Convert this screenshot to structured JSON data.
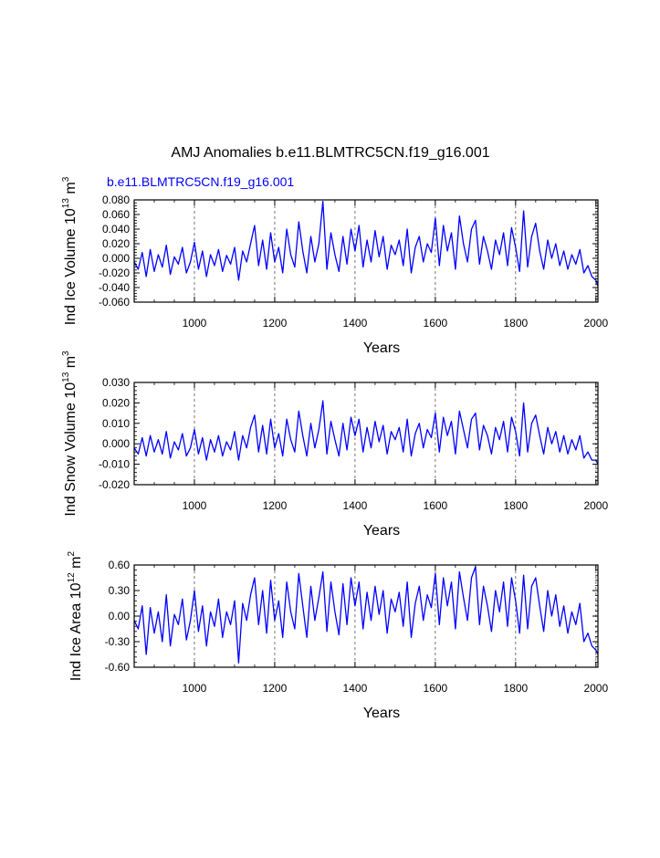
{
  "figure": {
    "title": "AMJ Anomalies b.e11.BLMTRC5CN.f19_g16.001",
    "case_label": "b.e11.BLMTRC5CN.f19_g16.001",
    "case_label_color": "#0000ff",
    "line_color": "#0000ff"
  },
  "chart_data": [
    {
      "type": "line",
      "name": "ice-volume",
      "ylabel": "Ind Ice Volume 10^13 m^3",
      "ylabel_parts": [
        "Ind Ice Volume 10",
        "13",
        " m",
        "3"
      ],
      "xlabel": "Years",
      "xlim": [
        850,
        2005
      ],
      "ylim": [
        -0.06,
        0.08
      ],
      "x_ticks": [
        1000,
        1200,
        1400,
        1600,
        1800,
        2000
      ],
      "x_tick_labels": [
        "1000",
        "1200",
        "1400",
        "1600",
        "1800",
        "2000"
      ],
      "y_ticks": [
        0.08,
        0.06,
        0.04,
        0.02,
        0.0,
        -0.02,
        -0.04,
        -0.06
      ],
      "y_tick_labels": [
        "0.080",
        "0.060",
        "0.040",
        "0.020",
        "0.000",
        "-0.020",
        "-0.040",
        "-0.060"
      ],
      "grid_x": [
        1000,
        1200,
        1400,
        1600,
        1800,
        2000
      ],
      "series": [
        {
          "name": "b.e11.BLMTRC5CN.f19_g16.001",
          "x": [
            850,
            860,
            870,
            880,
            890,
            900,
            910,
            920,
            930,
            940,
            950,
            960,
            970,
            980,
            990,
            1000,
            1010,
            1020,
            1030,
            1040,
            1050,
            1060,
            1070,
            1080,
            1090,
            1100,
            1110,
            1120,
            1130,
            1140,
            1150,
            1160,
            1170,
            1180,
            1190,
            1200,
            1210,
            1220,
            1230,
            1240,
            1250,
            1260,
            1270,
            1280,
            1290,
            1300,
            1310,
            1320,
            1330,
            1340,
            1350,
            1360,
            1370,
            1380,
            1390,
            1400,
            1410,
            1420,
            1430,
            1440,
            1450,
            1460,
            1470,
            1480,
            1490,
            1500,
            1510,
            1520,
            1530,
            1540,
            1550,
            1560,
            1570,
            1580,
            1590,
            1600,
            1610,
            1620,
            1630,
            1640,
            1650,
            1660,
            1670,
            1680,
            1690,
            1700,
            1710,
            1720,
            1730,
            1740,
            1750,
            1760,
            1770,
            1780,
            1790,
            1800,
            1810,
            1820,
            1830,
            1840,
            1850,
            1860,
            1870,
            1880,
            1890,
            1900,
            1910,
            1920,
            1930,
            1940,
            1950,
            1960,
            1970,
            1980,
            1990,
            2000,
            2005
          ],
          "values": [
            -0.005,
            -0.015,
            0.008,
            -0.025,
            0.012,
            -0.018,
            0.005,
            -0.012,
            0.018,
            -0.022,
            0.002,
            -0.008,
            0.015,
            -0.02,
            -0.005,
            0.022,
            -0.015,
            0.01,
            -0.025,
            0.005,
            -0.01,
            0.012,
            -0.018,
            0.004,
            -0.008,
            0.015,
            -0.03,
            0.01,
            -0.005,
            0.02,
            0.045,
            -0.01,
            0.025,
            -0.015,
            0.035,
            -0.005,
            0.015,
            -0.02,
            0.04,
            0.005,
            -0.012,
            0.05,
            0.01,
            -0.02,
            0.03,
            -0.005,
            0.02,
            0.078,
            -0.015,
            0.035,
            0.005,
            -0.018,
            0.03,
            -0.008,
            0.04,
            0.01,
            0.045,
            -0.012,
            0.025,
            -0.005,
            0.038,
            0.002,
            0.03,
            -0.015,
            0.018,
            0.005,
            0.025,
            -0.01,
            0.04,
            -0.02,
            0.015,
            0.03,
            -0.005,
            0.02,
            0.008,
            0.055,
            -0.01,
            0.045,
            0.01,
            0.035,
            -0.015,
            0.058,
            0.02,
            -0.005,
            0.04,
            0.052,
            -0.008,
            0.03,
            0.01,
            -0.015,
            0.025,
            0.005,
            0.035,
            -0.01,
            0.042,
            0.015,
            -0.018,
            0.065,
            -0.012,
            0.03,
            0.048,
            0.01,
            -0.015,
            0.025,
            0.0,
            0.02,
            -0.01,
            0.01,
            -0.015,
            0.005,
            -0.008,
            0.012,
            -0.02,
            -0.01,
            -0.025,
            -0.03,
            -0.038
          ]
        }
      ]
    },
    {
      "type": "line",
      "name": "snow-volume",
      "ylabel": "Ind Snow Volume 10^13 m^3",
      "ylabel_parts": [
        "Ind Snow Volume 10",
        "13",
        " m",
        "3"
      ],
      "xlabel": "Years",
      "xlim": [
        850,
        2005
      ],
      "ylim": [
        -0.02,
        0.03
      ],
      "x_ticks": [
        1000,
        1200,
        1400,
        1600,
        1800,
        2000
      ],
      "x_tick_labels": [
        "1000",
        "1200",
        "1400",
        "1600",
        "1800",
        "2000"
      ],
      "y_ticks": [
        0.03,
        0.02,
        0.01,
        0.0,
        -0.01,
        -0.02
      ],
      "y_tick_labels": [
        "0.030",
        "0.020",
        "0.010",
        "0.000",
        "-0.010",
        "-0.020"
      ],
      "grid_x": [
        1000,
        1200,
        1400,
        1600,
        1800,
        2000
      ],
      "series": [
        {
          "name": "b.e11.BLMTRC5CN.f19_g16.001",
          "x": [
            850,
            860,
            870,
            880,
            890,
            900,
            910,
            920,
            930,
            940,
            950,
            960,
            970,
            980,
            990,
            1000,
            1010,
            1020,
            1030,
            1040,
            1050,
            1060,
            1070,
            1080,
            1090,
            1100,
            1110,
            1120,
            1130,
            1140,
            1150,
            1160,
            1170,
            1180,
            1190,
            1200,
            1210,
            1220,
            1230,
            1240,
            1250,
            1260,
            1270,
            1280,
            1290,
            1300,
            1310,
            1320,
            1330,
            1340,
            1350,
            1360,
            1370,
            1380,
            1390,
            1400,
            1410,
            1420,
            1430,
            1440,
            1450,
            1460,
            1470,
            1480,
            1490,
            1500,
            1510,
            1520,
            1530,
            1540,
            1550,
            1560,
            1570,
            1580,
            1590,
            1600,
            1610,
            1620,
            1630,
            1640,
            1650,
            1660,
            1670,
            1680,
            1690,
            1700,
            1710,
            1720,
            1730,
            1740,
            1750,
            1760,
            1770,
            1780,
            1790,
            1800,
            1810,
            1820,
            1830,
            1840,
            1850,
            1860,
            1870,
            1880,
            1890,
            1900,
            1910,
            1920,
            1930,
            1940,
            1950,
            1960,
            1970,
            1980,
            1990,
            2000,
            2005
          ],
          "values": [
            -0.002,
            -0.005,
            0.003,
            -0.006,
            0.004,
            -0.004,
            0.002,
            -0.005,
            0.006,
            -0.007,
            0.001,
            -0.003,
            0.005,
            -0.006,
            -0.002,
            0.007,
            -0.005,
            0.003,
            -0.008,
            0.002,
            -0.004,
            0.004,
            -0.006,
            0.001,
            -0.003,
            0.006,
            -0.008,
            0.004,
            -0.002,
            0.008,
            0.014,
            -0.004,
            0.009,
            -0.005,
            0.012,
            -0.002,
            0.005,
            -0.006,
            0.012,
            0.002,
            -0.004,
            0.016,
            0.004,
            -0.006,
            0.01,
            -0.002,
            0.007,
            0.021,
            -0.005,
            0.011,
            0.002,
            -0.006,
            0.01,
            -0.003,
            0.013,
            0.004,
            0.012,
            -0.004,
            0.008,
            -0.002,
            0.011,
            0.001,
            0.009,
            -0.005,
            0.006,
            0.002,
            0.008,
            -0.004,
            0.012,
            -0.006,
            0.005,
            0.01,
            -0.002,
            0.007,
            0.003,
            0.015,
            -0.004,
            0.013,
            0.004,
            0.011,
            -0.005,
            0.016,
            0.007,
            -0.002,
            0.012,
            0.015,
            -0.003,
            0.009,
            0.004,
            -0.005,
            0.008,
            0.002,
            0.011,
            -0.004,
            0.013,
            0.006,
            -0.006,
            0.02,
            -0.004,
            0.01,
            0.014,
            0.004,
            -0.005,
            0.008,
            0.0,
            0.006,
            -0.004,
            0.004,
            -0.005,
            0.002,
            -0.003,
            0.004,
            -0.007,
            -0.004,
            -0.008,
            -0.008,
            -0.01
          ]
        }
      ]
    },
    {
      "type": "line",
      "name": "ice-area",
      "ylabel": "Ind Ice Area 10^12 m^2",
      "ylabel_parts": [
        "Ind Ice Area 10",
        "12",
        " m",
        "2"
      ],
      "xlabel": "Years",
      "xlim": [
        850,
        2005
      ],
      "ylim": [
        -0.6,
        0.6
      ],
      "x_ticks": [
        1000,
        1200,
        1400,
        1600,
        1800,
        2000
      ],
      "x_tick_labels": [
        "1000",
        "1200",
        "1400",
        "1600",
        "1800",
        "2000"
      ],
      "y_ticks": [
        0.6,
        0.3,
        0.0,
        -0.3,
        -0.6
      ],
      "y_tick_labels": [
        "0.60",
        "0.30",
        "0.00",
        "-0.30",
        "-0.60"
      ],
      "grid_x": [
        1000,
        1200,
        1400,
        1600,
        1800,
        2000
      ],
      "series": [
        {
          "name": "b.e11.BLMTRC5CN.f19_g16.001",
          "x": [
            850,
            860,
            870,
            880,
            890,
            900,
            910,
            920,
            930,
            940,
            950,
            960,
            970,
            980,
            990,
            1000,
            1010,
            1020,
            1030,
            1040,
            1050,
            1060,
            1070,
            1080,
            1090,
            1100,
            1110,
            1120,
            1130,
            1140,
            1150,
            1160,
            1170,
            1180,
            1190,
            1200,
            1210,
            1220,
            1230,
            1240,
            1250,
            1260,
            1270,
            1280,
            1290,
            1300,
            1310,
            1320,
            1330,
            1340,
            1350,
            1360,
            1370,
            1380,
            1390,
            1400,
            1410,
            1420,
            1430,
            1440,
            1450,
            1460,
            1470,
            1480,
            1490,
            1500,
            1510,
            1520,
            1530,
            1540,
            1550,
            1560,
            1570,
            1580,
            1590,
            1600,
            1610,
            1620,
            1630,
            1640,
            1650,
            1660,
            1670,
            1680,
            1690,
            1700,
            1710,
            1720,
            1730,
            1740,
            1750,
            1760,
            1770,
            1780,
            1790,
            1800,
            1810,
            1820,
            1830,
            1840,
            1850,
            1860,
            1870,
            1880,
            1890,
            1900,
            1910,
            1920,
            1930,
            1940,
            1950,
            1960,
            1970,
            1980,
            1990,
            2000,
            2005
          ],
          "values": [
            -0.05,
            -0.15,
            0.12,
            -0.45,
            0.1,
            -0.2,
            0.05,
            -0.3,
            0.25,
            -0.35,
            0.02,
            -0.1,
            0.2,
            -0.28,
            -0.05,
            0.3,
            -0.18,
            0.12,
            -0.35,
            0.05,
            -0.12,
            0.2,
            -0.25,
            0.05,
            -0.1,
            0.18,
            -0.55,
            0.15,
            -0.05,
            0.25,
            0.45,
            -0.1,
            0.3,
            -0.2,
            0.42,
            -0.05,
            0.18,
            -0.25,
            0.4,
            0.05,
            -0.15,
            0.5,
            0.12,
            -0.25,
            0.35,
            -0.05,
            0.22,
            0.52,
            -0.18,
            0.4,
            0.05,
            -0.22,
            0.38,
            -0.1,
            0.45,
            0.12,
            0.4,
            -0.15,
            0.28,
            -0.05,
            0.35,
            0.02,
            0.3,
            -0.2,
            0.2,
            0.05,
            0.28,
            -0.12,
            0.4,
            -0.25,
            0.15,
            0.35,
            -0.05,
            0.25,
            0.1,
            0.5,
            -0.1,
            0.45,
            0.12,
            0.4,
            -0.15,
            0.52,
            0.22,
            -0.05,
            0.45,
            0.58,
            -0.1,
            0.35,
            0.12,
            -0.18,
            0.3,
            0.05,
            0.4,
            -0.12,
            0.45,
            0.18,
            -0.2,
            0.48,
            -0.15,
            0.35,
            0.45,
            0.12,
            -0.18,
            0.3,
            0.0,
            0.25,
            -0.12,
            0.12,
            -0.2,
            0.05,
            -0.1,
            0.15,
            -0.3,
            -0.2,
            -0.35,
            -0.4,
            -0.45
          ]
        }
      ]
    }
  ]
}
